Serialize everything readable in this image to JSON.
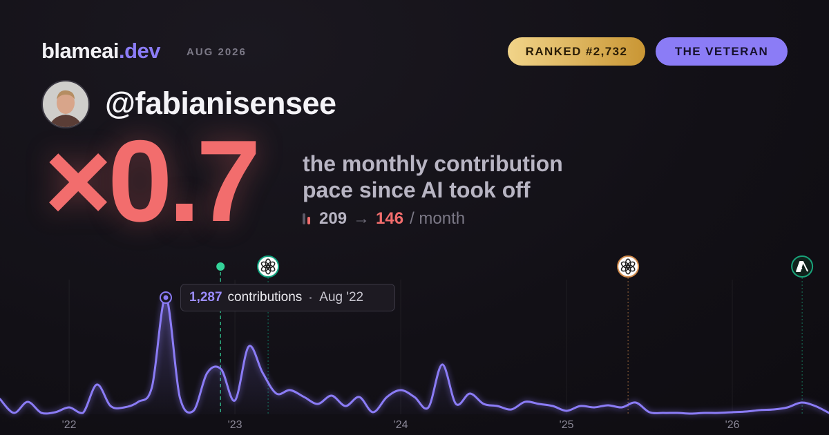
{
  "header": {
    "brand": "blameai",
    "brand_suffix": ".dev",
    "period": "AUG 2026",
    "rank": "RANKED #2,732",
    "tier": "THE VETERAN"
  },
  "profile": {
    "handle": "@fabianisensee"
  },
  "headline": {
    "multiplier": "×0.7",
    "caption": "the monthly contribution pace since AI took off",
    "before": 209,
    "arrow": "→",
    "after": 146,
    "unit": "/ month"
  },
  "chart_data": {
    "type": "line",
    "x": [
      2021.583,
      2021.667,
      2021.75,
      2021.833,
      2021.917,
      2022,
      2022.083,
      2022.167,
      2022.25,
      2022.333,
      2022.417,
      2022.5,
      2022.583,
      2022.667,
      2022.75,
      2022.833,
      2022.917,
      2023,
      2023.083,
      2023.167,
      2023.25,
      2023.333,
      2023.417,
      2023.5,
      2023.583,
      2023.667,
      2023.75,
      2023.833,
      2023.917,
      2024,
      2024.083,
      2024.167,
      2024.25,
      2024.333,
      2024.417,
      2024.5,
      2024.583,
      2024.667,
      2024.75,
      2024.833,
      2024.917,
      2025,
      2025.083,
      2025.167,
      2025.25,
      2025.333,
      2025.417,
      2025.5,
      2025.583,
      2025.667,
      2025.75,
      2025.833,
      2025.917,
      2026,
      2026.083,
      2026.167,
      2026.25,
      2026.333,
      2026.417,
      2026.5,
      2026.583
    ],
    "series": [
      {
        "name": "contributions",
        "color": "#8b7cf6",
        "values": [
          167,
          15,
          137,
          15,
          23,
          76,
          15,
          327,
          91,
          76,
          137,
          304,
          1287,
          190,
          38,
          456,
          494,
          152,
          745,
          456,
          228,
          266,
          190,
          114,
          205,
          91,
          190,
          23,
          190,
          266,
          190,
          76,
          547,
          114,
          228,
          114,
          91,
          53,
          137,
          114,
          91,
          38,
          91,
          76,
          99,
          76,
          129,
          23,
          15,
          15,
          8,
          15,
          15,
          23,
          30,
          46,
          53,
          76,
          129,
          91,
          15
        ]
      }
    ],
    "xlim": [
      2021.583,
      2026.583
    ],
    "xticks": [
      {
        "value": 2022,
        "label": "'22"
      },
      {
        "value": 2023,
        "label": "'23"
      },
      {
        "value": 2024,
        "label": "'24"
      },
      {
        "value": 2025,
        "label": "'25"
      },
      {
        "value": 2026,
        "label": "'26"
      }
    ],
    "ylim": [
      0,
      1480
    ],
    "grid": true,
    "events": [
      {
        "x": 2022.913,
        "color": "#34d399",
        "marker": "dot"
      },
      {
        "x": 2023.2,
        "color": "#10a37f",
        "marker": "openai"
      },
      {
        "x": 2025.371,
        "color": "#d08a4b",
        "marker": "openai"
      },
      {
        "x": 2026.421,
        "color": "#19a37a",
        "marker": "anthropic"
      }
    ],
    "tooltip": {
      "value_label": "1,287",
      "text": "contributions",
      "date": "Aug '22"
    }
  }
}
